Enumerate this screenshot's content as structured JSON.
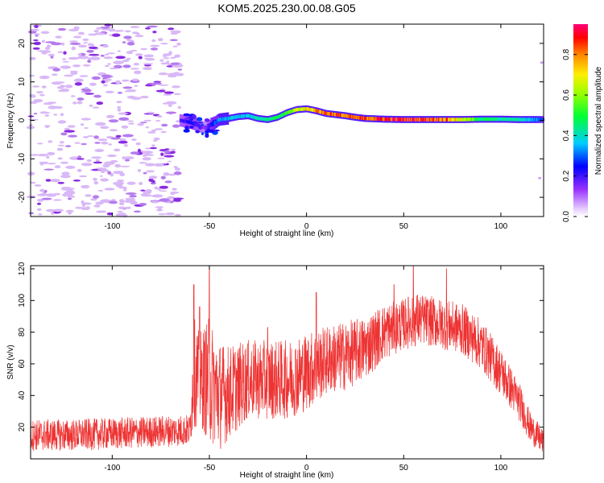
{
  "title": "KOM5.2025.230.00.08.G05",
  "chart_data": [
    {
      "type": "heatmap",
      "title": "KOM5.2025.230.00.08.G05",
      "xlabel": "Height of straight line (km)",
      "ylabel": "Frequency (Hz)",
      "xlim": [
        -142,
        122
      ],
      "ylim": [
        -25,
        25
      ],
      "xticks": [
        -100,
        -50,
        0,
        50,
        100
      ],
      "yticks": [
        -20,
        -10,
        0,
        10,
        20
      ],
      "noise_region_x": [
        -142,
        -65
      ],
      "trace": {
        "x": [
          -65,
          -60,
          -55,
          -52,
          -48,
          -45,
          -40,
          -35,
          -30,
          -25,
          -20,
          -15,
          -10,
          -5,
          0,
          5,
          10,
          15,
          20,
          25,
          30,
          40,
          50,
          60,
          70,
          80,
          90,
          100,
          110,
          122
        ],
        "freq": [
          0,
          -0.5,
          -1.5,
          -2,
          -1,
          0.2,
          0.5,
          1.0,
          1.2,
          0.5,
          0.2,
          0.8,
          2.0,
          2.8,
          3.0,
          2.5,
          1.8,
          1.5,
          1.2,
          0.8,
          0.5,
          0.3,
          0.2,
          0.2,
          0.2,
          0.2,
          0.3,
          0.3,
          0.2,
          0.2
        ],
        "amplitude": [
          0.2,
          0.25,
          0.2,
          0.15,
          0.3,
          0.35,
          0.4,
          0.4,
          0.4,
          0.45,
          0.45,
          0.5,
          0.55,
          0.7,
          0.75,
          0.85,
          0.9,
          0.9,
          0.85,
          0.85,
          0.9,
          0.95,
          0.95,
          0.95,
          0.9,
          0.7,
          0.5,
          0.45,
          0.45,
          0.3
        ]
      },
      "colorbar": {
        "label": "Normalized spectral amplitude",
        "range": [
          0.0,
          0.95
        ],
        "ticks": [
          "0.0",
          "0.2",
          "0.4",
          "0.6",
          "0.8"
        ]
      }
    },
    {
      "type": "line",
      "xlabel": "Height of straight line (km)",
      "ylabel": "SNR (v/v)",
      "xlim": [
        -142,
        122
      ],
      "ylim": [
        0,
        122
      ],
      "xticks": [
        -100,
        -50,
        0,
        50,
        100
      ],
      "yticks": [
        20,
        40,
        60,
        80,
        100,
        120
      ],
      "series": [
        {
          "name": "SNR",
          "color": "#ee3333",
          "envelope_x": [
            -142,
            -120,
            -100,
            -80,
            -65,
            -60,
            -58,
            -55,
            -50,
            -45,
            -40,
            -30,
            -20,
            -10,
            0,
            10,
            20,
            30,
            40,
            50,
            55,
            60,
            70,
            80,
            90,
            100,
            110,
            115,
            122
          ],
          "envelope_mean": [
            15,
            15,
            16,
            17,
            18,
            18,
            55,
            50,
            50,
            40,
            42,
            50,
            50,
            50,
            55,
            62,
            65,
            70,
            80,
            85,
            88,
            88,
            85,
            82,
            72,
            55,
            35,
            20,
            10
          ],
          "envelope_spread": [
            10,
            10,
            10,
            10,
            10,
            10,
            35,
            30,
            40,
            35,
            30,
            25,
            25,
            25,
            25,
            22,
            22,
            20,
            18,
            16,
            18,
            16,
            16,
            16,
            16,
            15,
            12,
            10,
            8
          ],
          "peaks": [
            [
              -58,
              110
            ],
            [
              -55,
              96
            ],
            [
              -50,
              120
            ],
            [
              -20,
              83
            ],
            [
              5,
              105
            ],
            [
              45,
              110
            ],
            [
              55,
              122
            ],
            [
              72,
              120
            ]
          ]
        }
      ]
    }
  ]
}
